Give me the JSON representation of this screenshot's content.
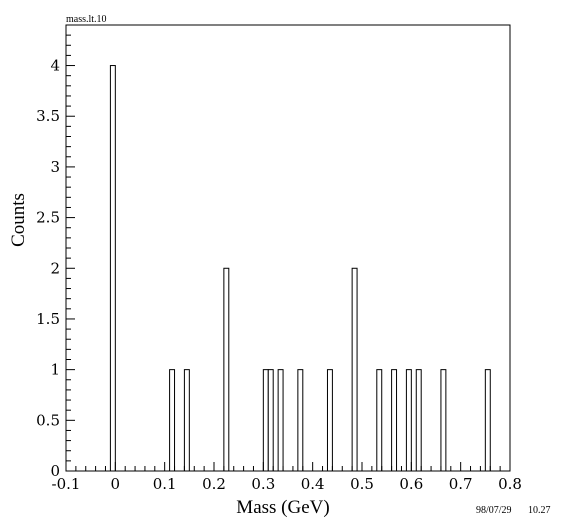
{
  "chart_data": {
    "type": "bar",
    "title": "mass.lt.10",
    "xlabel": "Mass (GeV)",
    "ylabel": "Counts",
    "xlim": [
      -0.1,
      0.8
    ],
    "ylim": [
      0,
      4.4
    ],
    "bin_width": 0.01,
    "grid": false,
    "legend": "none",
    "x_ticks": [
      -0.1,
      0,
      0.1,
      0.2,
      0.3,
      0.4,
      0.5,
      0.6,
      0.7,
      0.8
    ],
    "x_tick_labels": [
      "-0.1",
      "0",
      "0.1",
      "0.2",
      "0.3",
      "0.4",
      "0.5",
      "0.6",
      "0.7",
      "0.8"
    ],
    "y_ticks": [
      0,
      0.5,
      1,
      1.5,
      2,
      2.5,
      3,
      3.5,
      4
    ],
    "y_tick_labels": [
      "0",
      "0.5",
      "1",
      "1.5",
      "2",
      "2.5",
      "3",
      "3.5",
      "4"
    ],
    "bins": [
      {
        "x": -0.01,
        "count": 4
      },
      {
        "x": 0.11,
        "count": 1
      },
      {
        "x": 0.14,
        "count": 1
      },
      {
        "x": 0.22,
        "count": 2
      },
      {
        "x": 0.3,
        "count": 1
      },
      {
        "x": 0.31,
        "count": 1
      },
      {
        "x": 0.33,
        "count": 1
      },
      {
        "x": 0.37,
        "count": 1
      },
      {
        "x": 0.43,
        "count": 1
      },
      {
        "x": 0.48,
        "count": 2
      },
      {
        "x": 0.53,
        "count": 1
      },
      {
        "x": 0.56,
        "count": 1
      },
      {
        "x": 0.59,
        "count": 1
      },
      {
        "x": 0.61,
        "count": 1
      },
      {
        "x": 0.66,
        "count": 1
      },
      {
        "x": 0.75,
        "count": 1
      }
    ],
    "colors": {
      "bar_fill": "#ffffff",
      "bar_stroke": "#000000",
      "frame": "#000000"
    }
  },
  "footer": {
    "date": "98/07/29",
    "time": "10.27"
  }
}
